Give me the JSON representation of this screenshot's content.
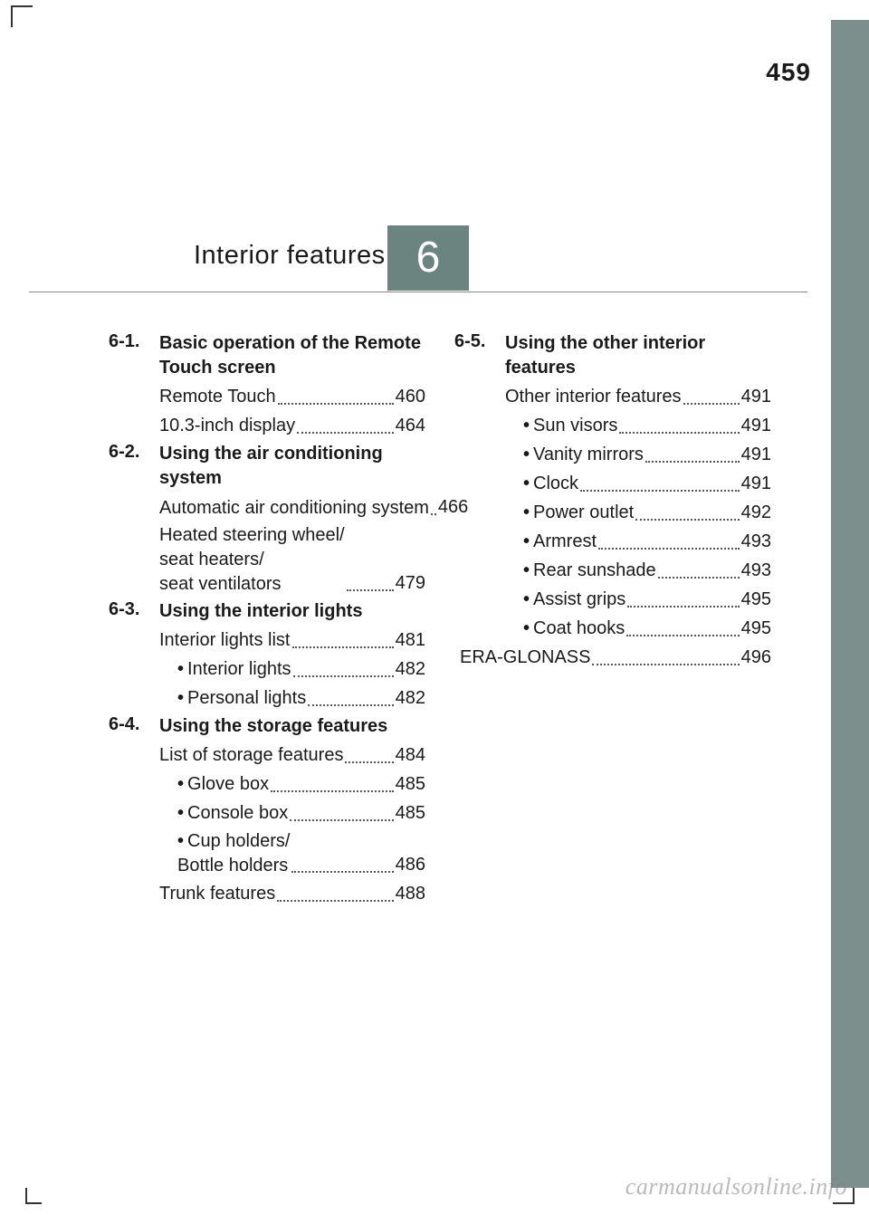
{
  "page_number": "459",
  "chapter": {
    "title": "Interior features",
    "badge": "6"
  },
  "left_col": [
    {
      "type": "section",
      "num": "6-1.",
      "title": "Basic operation of the Remote Touch screen"
    },
    {
      "type": "entry",
      "label": "Remote Touch",
      "page": "460"
    },
    {
      "type": "entry",
      "label": "10.3-inch display",
      "page": "464"
    },
    {
      "type": "section",
      "num": "6-2.",
      "title": "Using the air conditioning system"
    },
    {
      "type": "entry",
      "label": "Automatic air conditioning system",
      "page": "466",
      "multi": true
    },
    {
      "type": "entry",
      "label": "Heated steering wheel/ seat heaters/ seat ventilators",
      "page": "479",
      "multi": true
    },
    {
      "type": "section",
      "num": "6-3.",
      "title": "Using the interior lights"
    },
    {
      "type": "entry",
      "label": "Interior lights list",
      "page": "481"
    },
    {
      "type": "sub",
      "label": "Interior lights",
      "page": "482"
    },
    {
      "type": "sub",
      "label": "Personal lights",
      "page": "482"
    },
    {
      "type": "section",
      "num": "6-4.",
      "title": "Using the storage features"
    },
    {
      "type": "entry",
      "label": "List of storage features",
      "page": "484"
    },
    {
      "type": "sub",
      "label": "Glove box",
      "page": "485"
    },
    {
      "type": "sub",
      "label": "Console box",
      "page": "485"
    },
    {
      "type": "sub",
      "label": "Cup holders/ Bottle holders",
      "page": "486",
      "multi": true
    },
    {
      "type": "entry",
      "label": "Trunk features",
      "page": "488"
    }
  ],
  "right_col": [
    {
      "type": "section",
      "num": "6-5.",
      "title": "Using the other interior features"
    },
    {
      "type": "entry",
      "label": "Other interior features",
      "page": "491"
    },
    {
      "type": "sub",
      "label": "Sun visors",
      "page": "491"
    },
    {
      "type": "sub",
      "label": "Vanity mirrors",
      "page": "491"
    },
    {
      "type": "sub",
      "label": "Clock",
      "page": "491"
    },
    {
      "type": "sub",
      "label": "Power outlet",
      "page": "492"
    },
    {
      "type": "sub",
      "label": "Armrest",
      "page": "493"
    },
    {
      "type": "sub",
      "label": "Rear sunshade",
      "page": "493"
    },
    {
      "type": "sub",
      "label": "Assist grips",
      "page": "495"
    },
    {
      "type": "sub",
      "label": "Coat hooks",
      "page": "495"
    },
    {
      "type": "entry",
      "label": "ERA-GLONASS",
      "page": "496",
      "outdent": true
    }
  ],
  "watermark": "carmanualsonline.info",
  "colors": {
    "accent": "#6c8480",
    "side_tab": "#7d8f8c",
    "text": "#1a1a1a",
    "watermark": "rgba(130,130,130,0.55)"
  }
}
